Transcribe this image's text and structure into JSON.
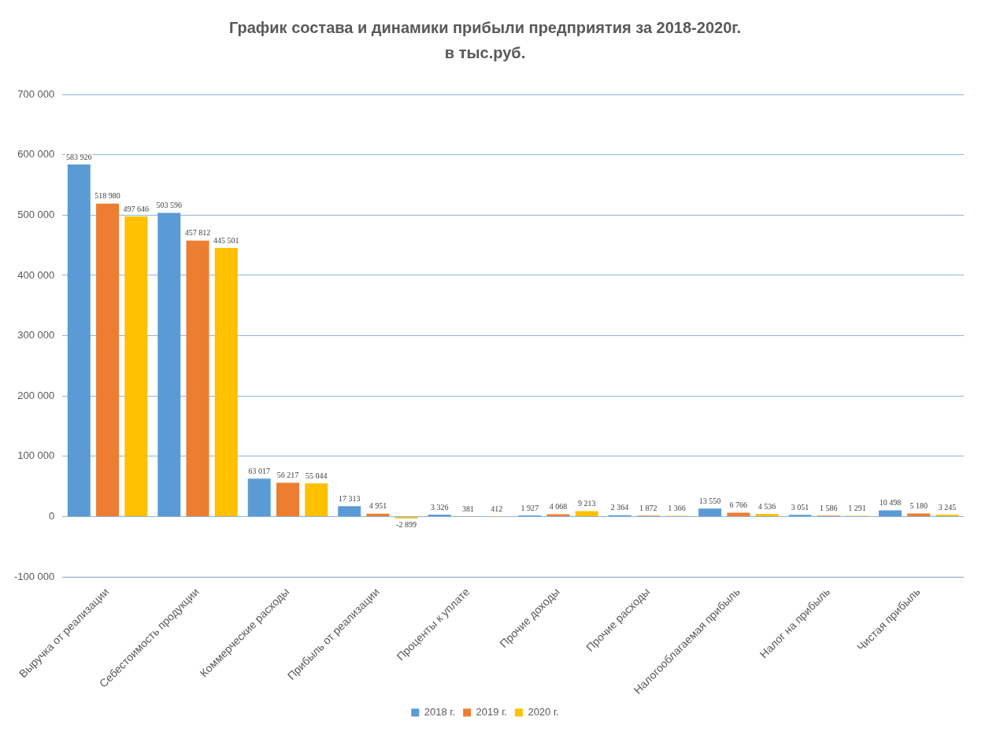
{
  "chart_data": {
    "type": "bar",
    "title": "График состава и динамики прибыли предприятия за 2018-2020г.",
    "subtitle": "в тыс.руб.",
    "categories": [
      "Выручка от реализации",
      "Себестоимость продукции",
      "Коммерческие расходы",
      "Прибыль от реализации",
      "Проценты к уплате",
      "Прочие доходы",
      "Прочие расходы",
      "Налогооблагаемая прибыль",
      "Налог на прибыль",
      "Чистая прибыль"
    ],
    "series": [
      {
        "name": "2018 г.",
        "color": "#5b9bd5",
        "values": [
          583926,
          503596,
          63017,
          17313,
          3326,
          1927,
          2364,
          13550,
          3051,
          10498
        ],
        "value_labels": [
          "583 926",
          "503 596",
          "63 017",
          "17 313",
          "3 326",
          "1 927",
          "2 364",
          "13 550",
          "3 051",
          "10 498"
        ]
      },
      {
        "name": "2019 г.",
        "color": "#ed7d31",
        "values": [
          518980,
          457812,
          56217,
          4951,
          381,
          4068,
          1872,
          6766,
          1586,
          5180
        ],
        "value_labels": [
          "518 980",
          "457 812",
          "56 217",
          "4 951",
          "381",
          "4 068",
          "1 872",
          "6 766",
          "1 586",
          "5 180"
        ]
      },
      {
        "name": "2020 г.",
        "color": "#ffc000",
        "values": [
          497646,
          445501,
          55044,
          -2899,
          412,
          9213,
          1366,
          4536,
          1291,
          3245
        ],
        "value_labels": [
          "497 646",
          "445 501",
          "55 044",
          "-2 899",
          "412",
          "9 213",
          "1 366",
          "4 536",
          "1 291",
          "3 245"
        ]
      }
    ],
    "ylim": [
      -100000,
      700000
    ],
    "yticks": [
      {
        "value": -100000,
        "label": "-100 000"
      },
      {
        "value": 0,
        "label": "0"
      },
      {
        "value": 100000,
        "label": "100 000"
      },
      {
        "value": 200000,
        "label": "200 000"
      },
      {
        "value": 300000,
        "label": "300 000"
      },
      {
        "value": 400000,
        "label": "400 000"
      },
      {
        "value": 500000,
        "label": "500 000"
      },
      {
        "value": 600000,
        "label": "600 000"
      },
      {
        "value": 700000,
        "label": "700 000"
      }
    ],
    "grid": "y",
    "legend": "bottom"
  }
}
